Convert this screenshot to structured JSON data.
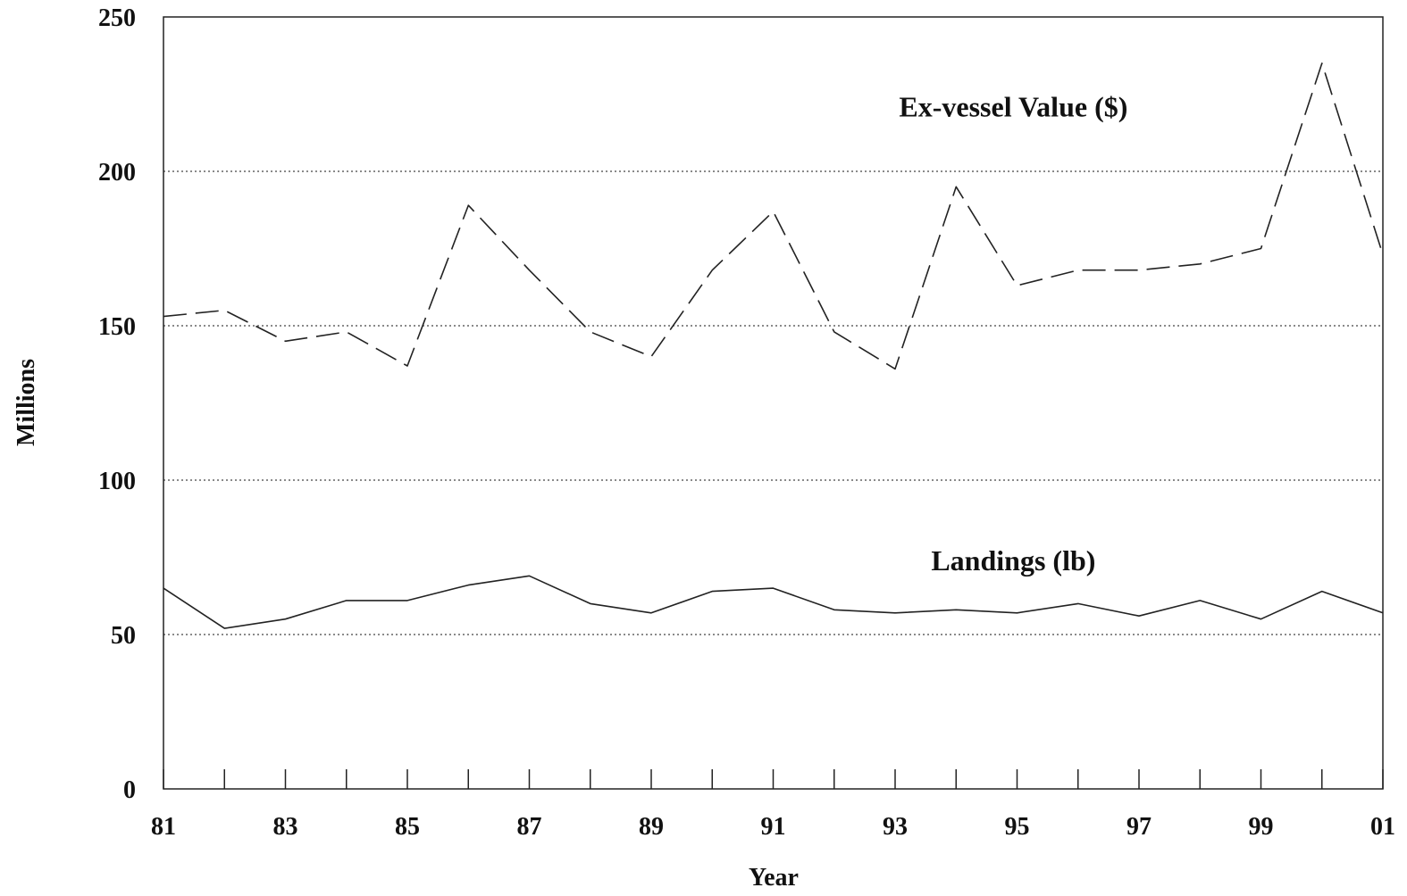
{
  "chart_data": {
    "type": "line",
    "xlabel": "Year",
    "ylabel": "Millions",
    "ylim": [
      0,
      250
    ],
    "xlim": [
      1981,
      2001
    ],
    "grid": "horizontal dotted",
    "y_ticks": [
      0,
      50,
      100,
      150,
      200,
      250
    ],
    "y_tick_labels": [
      "0",
      "50",
      "100",
      "150",
      "200",
      "250"
    ],
    "x_ticks": [
      1981,
      1982,
      1983,
      1984,
      1985,
      1986,
      1987,
      1988,
      1989,
      1990,
      1991,
      1992,
      1993,
      1994,
      1995,
      1996,
      1997,
      1998,
      1999,
      2000,
      2001
    ],
    "x_tick_labels": [
      {
        "year": 1981,
        "label": "81"
      },
      {
        "year": 1983,
        "label": "83"
      },
      {
        "year": 1985,
        "label": "85"
      },
      {
        "year": 1987,
        "label": "87"
      },
      {
        "year": 1989,
        "label": "89"
      },
      {
        "year": 1991,
        "label": "91"
      },
      {
        "year": 1993,
        "label": "93"
      },
      {
        "year": 1995,
        "label": "95"
      },
      {
        "year": 1997,
        "label": "97"
      },
      {
        "year": 1999,
        "label": "99"
      },
      {
        "year": 2001,
        "label": "01"
      }
    ],
    "x": [
      1981,
      1982,
      1983,
      1984,
      1985,
      1986,
      1987,
      1988,
      1989,
      1990,
      1991,
      1992,
      1993,
      1994,
      1995,
      1996,
      1997,
      1998,
      1999,
      2000,
      2001
    ],
    "series": [
      {
        "name": "Ex-vessel Value ($)",
        "line_style": "dashed",
        "color": "#222222",
        "label_year": 1994.5,
        "label_value": 221,
        "values": [
          153,
          155,
          145,
          148,
          137,
          189,
          168,
          148,
          140,
          168,
          187,
          148,
          136,
          195,
          163,
          168,
          168,
          170,
          175,
          235,
          173
        ]
      },
      {
        "name": "Landings (lb)",
        "line_style": "solid",
        "color": "#222222",
        "label_year": 1994.5,
        "label_value": 74,
        "values": [
          65,
          52,
          55,
          61,
          61,
          66,
          69,
          60,
          57,
          64,
          65,
          58,
          57,
          58,
          57,
          60,
          56,
          61,
          55,
          64,
          57
        ]
      }
    ]
  }
}
